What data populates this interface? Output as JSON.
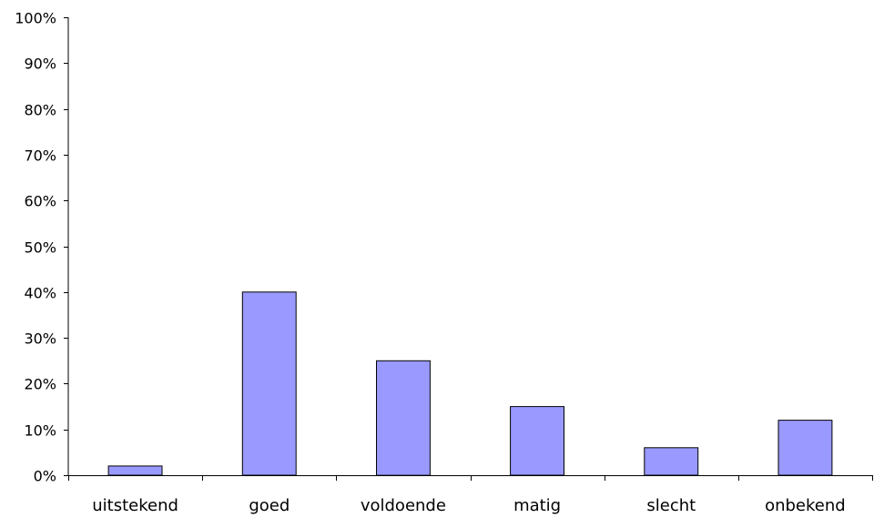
{
  "chart_data": {
    "type": "bar",
    "title": "",
    "xlabel": "",
    "ylabel": "",
    "categories": [
      "uitstekend",
      "goed",
      "voldoende",
      "matig",
      "slecht",
      "onbekend"
    ],
    "values": [
      2,
      40,
      25,
      15,
      6,
      12
    ],
    "ylim": [
      0,
      100
    ],
    "yticks": [
      0,
      10,
      20,
      30,
      40,
      50,
      60,
      70,
      80,
      90,
      100
    ],
    "ytick_labels": [
      "0%",
      "10%",
      "20%",
      "30%",
      "40%",
      "50%",
      "60%",
      "70%",
      "80%",
      "90%",
      "100%"
    ],
    "grid": false,
    "legend": "none",
    "bar_color": "#9999ff",
    "bar_edge_color": "#000000"
  }
}
